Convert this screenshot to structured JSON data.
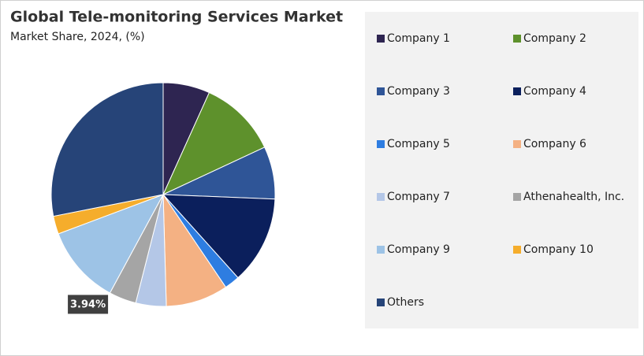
{
  "chart_data": {
    "type": "pie",
    "title": "Global Tele-monitoring Services Market",
    "subtitle": "Market Share, 2024, (%)",
    "categories": [
      "Company 1",
      "Company 2",
      "Company 3",
      "Company 4",
      "Company 5",
      "Company 6",
      "Company 7",
      "Athenahealth, Inc.",
      "Company 9",
      "Company 10",
      "Others"
    ],
    "values": [
      6.75,
      11.3,
      7.6,
      12.7,
      2.2,
      9.0,
      4.4,
      3.94,
      11.4,
      2.6,
      28.11
    ],
    "value_labels": [
      null,
      null,
      null,
      null,
      null,
      null,
      null,
      "3.94%",
      null,
      null,
      null
    ],
    "colors": [
      "#2e2551",
      "#5e912c",
      "#2f5597",
      "#0b1f5c",
      "#2e7de1",
      "#f4b183",
      "#b4c7e7",
      "#a5a5a5",
      "#9dc3e6",
      "#f5ad2c",
      "#264478"
    ],
    "legend": "right"
  }
}
